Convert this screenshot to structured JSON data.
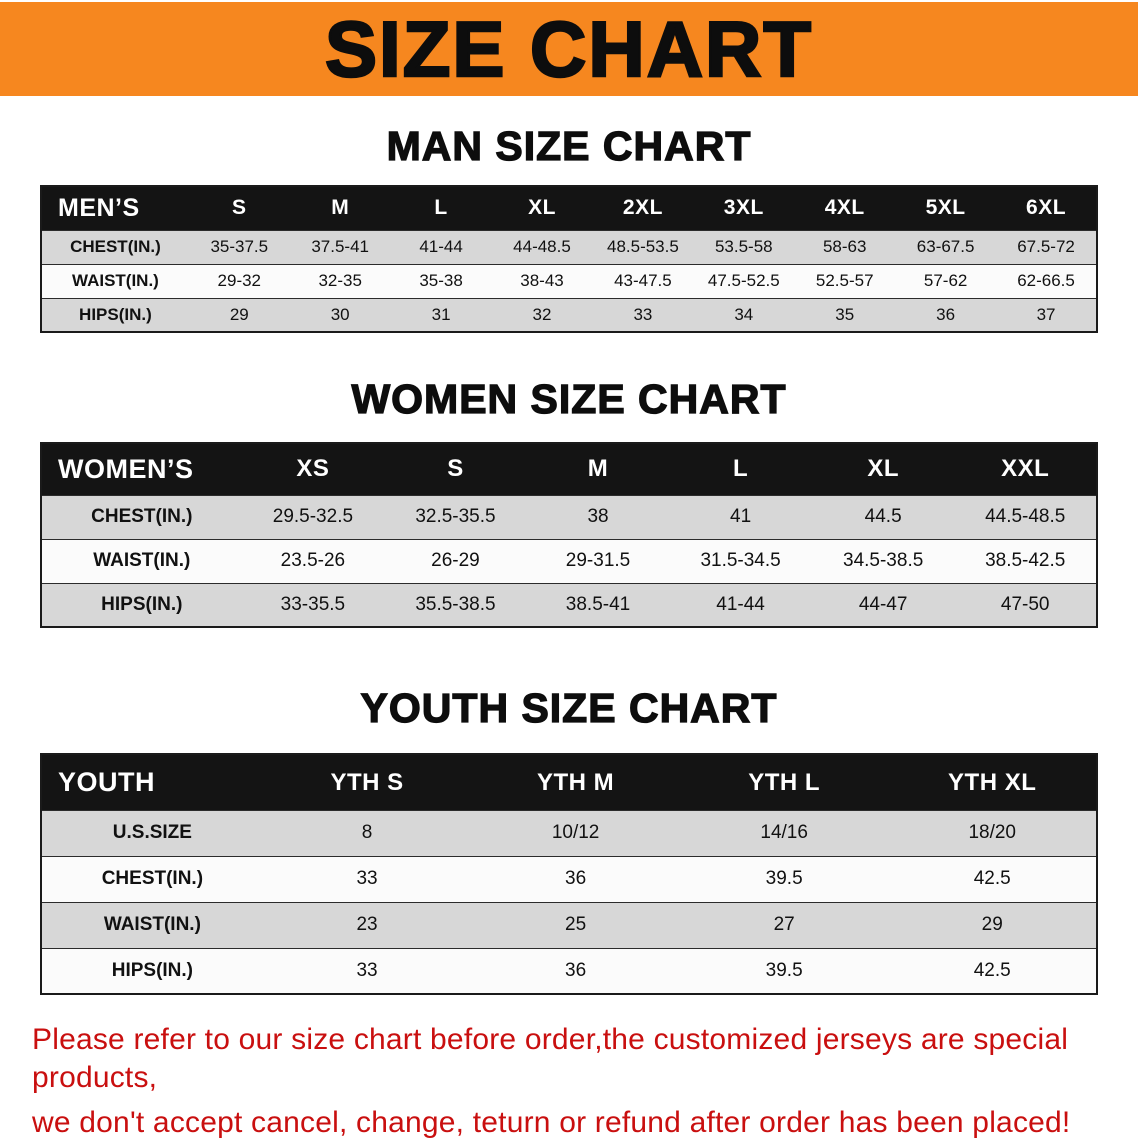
{
  "banner": {
    "title": "SIZE CHART"
  },
  "sections": [
    {
      "id": "men",
      "title": "MAN SIZE CHART",
      "header": [
        "MEN’S",
        "S",
        "M",
        "L",
        "XL",
        "2XL",
        "3XL",
        "4XL",
        "5XL",
        "6XL"
      ],
      "rows": [
        [
          "CHEST(IN.)",
          "35-37.5",
          "37.5-41",
          "41-44",
          "44-48.5",
          "48.5-53.5",
          "53.5-58",
          "58-63",
          "63-67.5",
          "67.5-72"
        ],
        [
          "WAIST(IN.)",
          "29-32",
          "32-35",
          "35-38",
          "38-43",
          "43-47.5",
          "47.5-52.5",
          "52.5-57",
          "57-62",
          "62-66.5"
        ],
        [
          "HIPS(IN.)",
          "29",
          "30",
          "31",
          "32",
          "33",
          "34",
          "35",
          "36",
          "37"
        ]
      ]
    },
    {
      "id": "women",
      "title": "WOMEN SIZE CHART",
      "header": [
        "WOMEN’S",
        "XS",
        "S",
        "M",
        "L",
        "XL",
        "XXL"
      ],
      "rows": [
        [
          "CHEST(IN.)",
          "29.5-32.5",
          "32.5-35.5",
          "38",
          "41",
          "44.5",
          "44.5-48.5"
        ],
        [
          "WAIST(IN.)",
          "23.5-26",
          "26-29",
          "29-31.5",
          "31.5-34.5",
          "34.5-38.5",
          "38.5-42.5"
        ],
        [
          "HIPS(IN.)",
          "33-35.5",
          "35.5-38.5",
          "38.5-41",
          "41-44",
          "44-47",
          "47-50"
        ]
      ]
    },
    {
      "id": "youth",
      "title": "YOUTH SIZE CHART",
      "header": [
        "YOUTH",
        "YTH S",
        "YTH M",
        "YTH L",
        "YTH XL"
      ],
      "rows": [
        [
          "U.S.SIZE",
          "8",
          "10/12",
          "14/16",
          "18/20"
        ],
        [
          "CHEST(IN.)",
          "33",
          "36",
          "39.5",
          "42.5"
        ],
        [
          "WAIST(IN.)",
          "23",
          "25",
          "27",
          "29"
        ],
        [
          "HIPS(IN.)",
          "33",
          "36",
          "39.5",
          "42.5"
        ]
      ]
    }
  ],
  "disclaimer": {
    "line1": "Please refer to our size chart before order,the customized jerseys are special products,",
    "line2": "we don't accept cancel, change, teturn or refund after order has been placed!"
  },
  "colors": {
    "banner_bg": "#f6871f",
    "table_header_bg": "#141414",
    "row_alt_bg": "#d7d7d7",
    "disclaimer_red": "#c90f0f"
  }
}
